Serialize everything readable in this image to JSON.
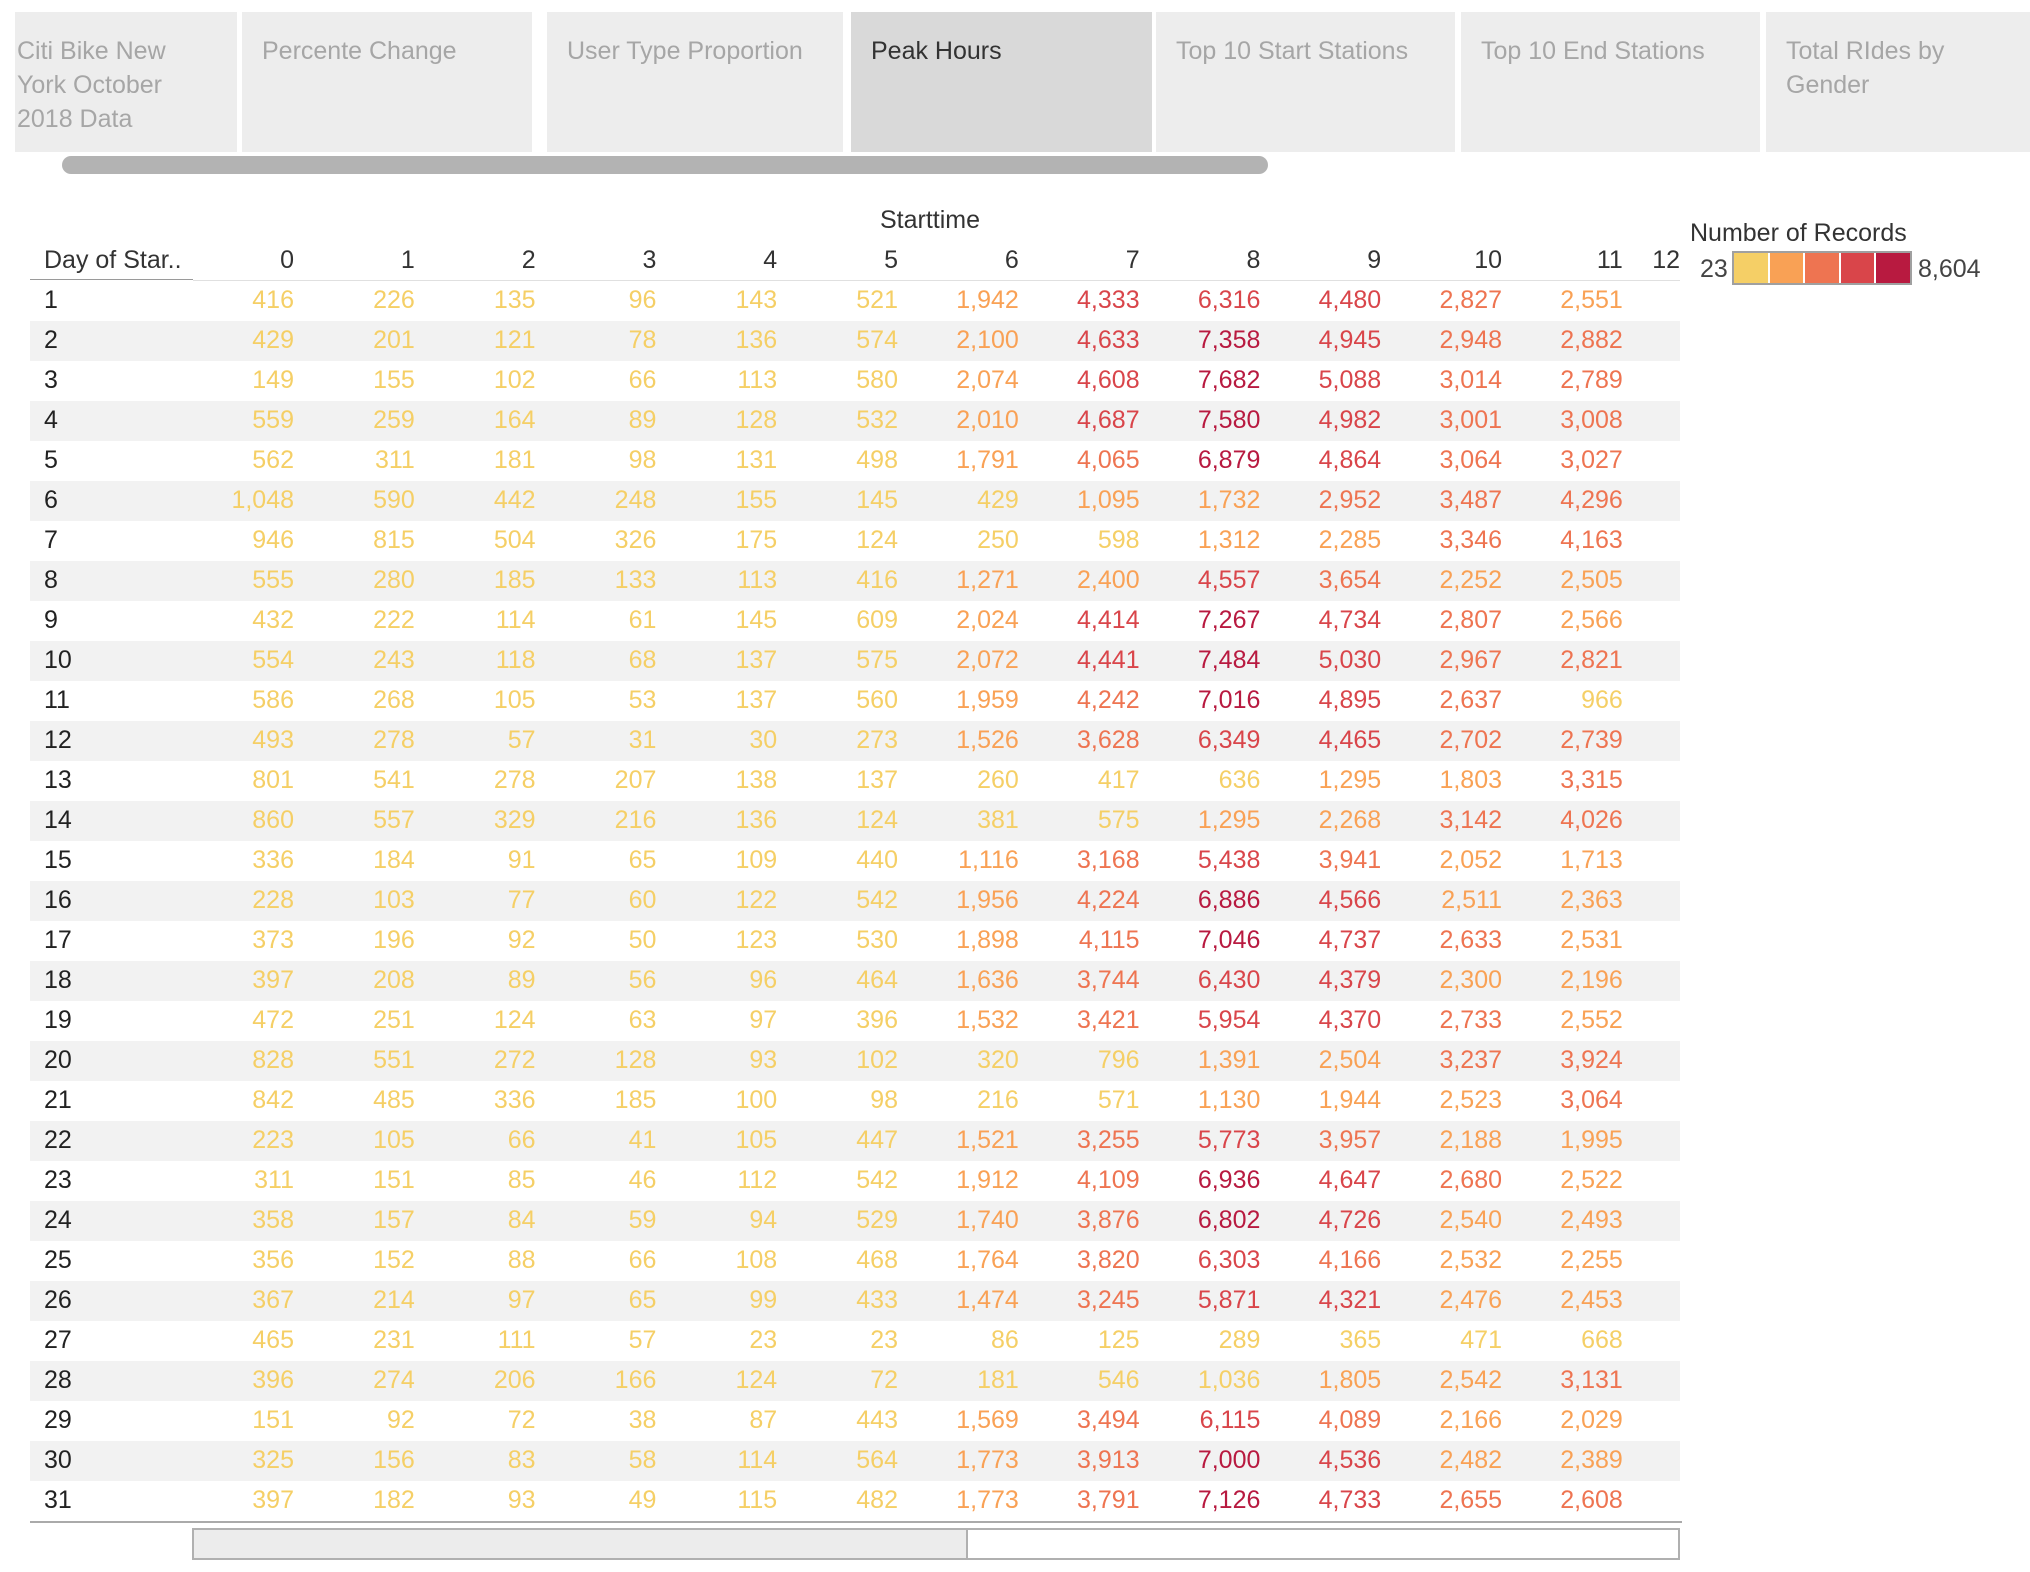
{
  "tabs": [
    {
      "label": "Citi Bike New York October 2018 Data",
      "active": false
    },
    {
      "label": "Percente Change",
      "active": false
    },
    {
      "label": "User Type Proportion",
      "active": false
    },
    {
      "label": "Peak Hours",
      "active": true
    },
    {
      "label": "Top 10 Start Stations",
      "active": false
    },
    {
      "label": "Top 10 End Stations",
      "active": false
    },
    {
      "label": "Total RIdes by Gender",
      "active": false
    }
  ],
  "table": {
    "column_title": "Starttime",
    "row_header": "Day of Star..",
    "columns": [
      "0",
      "1",
      "2",
      "3",
      "4",
      "5",
      "6",
      "7",
      "8",
      "9",
      "10",
      "11",
      "12"
    ],
    "rows": [
      {
        "day": "1",
        "values": [
          "416",
          "226",
          "135",
          "96",
          "143",
          "521",
          "1,942",
          "4,333",
          "6,316",
          "4,480",
          "2,827",
          "2,551"
        ]
      },
      {
        "day": "2",
        "values": [
          "429",
          "201",
          "121",
          "78",
          "136",
          "574",
          "2,100",
          "4,633",
          "7,358",
          "4,945",
          "2,948",
          "2,882"
        ]
      },
      {
        "day": "3",
        "values": [
          "149",
          "155",
          "102",
          "66",
          "113",
          "580",
          "2,074",
          "4,608",
          "7,682",
          "5,088",
          "3,014",
          "2,789"
        ]
      },
      {
        "day": "4",
        "values": [
          "559",
          "259",
          "164",
          "89",
          "128",
          "532",
          "2,010",
          "4,687",
          "7,580",
          "4,982",
          "3,001",
          "3,008"
        ]
      },
      {
        "day": "5",
        "values": [
          "562",
          "311",
          "181",
          "98",
          "131",
          "498",
          "1,791",
          "4,065",
          "6,879",
          "4,864",
          "3,064",
          "3,027"
        ]
      },
      {
        "day": "6",
        "values": [
          "1,048",
          "590",
          "442",
          "248",
          "155",
          "145",
          "429",
          "1,095",
          "1,732",
          "2,952",
          "3,487",
          "4,296"
        ]
      },
      {
        "day": "7",
        "values": [
          "946",
          "815",
          "504",
          "326",
          "175",
          "124",
          "250",
          "598",
          "1,312",
          "2,285",
          "3,346",
          "4,163"
        ]
      },
      {
        "day": "8",
        "values": [
          "555",
          "280",
          "185",
          "133",
          "113",
          "416",
          "1,271",
          "2,400",
          "4,557",
          "3,654",
          "2,252",
          "2,505"
        ]
      },
      {
        "day": "9",
        "values": [
          "432",
          "222",
          "114",
          "61",
          "145",
          "609",
          "2,024",
          "4,414",
          "7,267",
          "4,734",
          "2,807",
          "2,566"
        ]
      },
      {
        "day": "10",
        "values": [
          "554",
          "243",
          "118",
          "68",
          "137",
          "575",
          "2,072",
          "4,441",
          "7,484",
          "5,030",
          "2,967",
          "2,821"
        ]
      },
      {
        "day": "11",
        "values": [
          "586",
          "268",
          "105",
          "53",
          "137",
          "560",
          "1,959",
          "4,242",
          "7,016",
          "4,895",
          "2,637",
          "966"
        ]
      },
      {
        "day": "12",
        "values": [
          "493",
          "278",
          "57",
          "31",
          "30",
          "273",
          "1,526",
          "3,628",
          "6,349",
          "4,465",
          "2,702",
          "2,739"
        ]
      },
      {
        "day": "13",
        "values": [
          "801",
          "541",
          "278",
          "207",
          "138",
          "137",
          "260",
          "417",
          "636",
          "1,295",
          "1,803",
          "3,315"
        ]
      },
      {
        "day": "14",
        "values": [
          "860",
          "557",
          "329",
          "216",
          "136",
          "124",
          "381",
          "575",
          "1,295",
          "2,268",
          "3,142",
          "4,026"
        ]
      },
      {
        "day": "15",
        "values": [
          "336",
          "184",
          "91",
          "65",
          "109",
          "440",
          "1,116",
          "3,168",
          "5,438",
          "3,941",
          "2,052",
          "1,713"
        ]
      },
      {
        "day": "16",
        "values": [
          "228",
          "103",
          "77",
          "60",
          "122",
          "542",
          "1,956",
          "4,224",
          "6,886",
          "4,566",
          "2,511",
          "2,363"
        ]
      },
      {
        "day": "17",
        "values": [
          "373",
          "196",
          "92",
          "50",
          "123",
          "530",
          "1,898",
          "4,115",
          "7,046",
          "4,737",
          "2,633",
          "2,531"
        ]
      },
      {
        "day": "18",
        "values": [
          "397",
          "208",
          "89",
          "56",
          "96",
          "464",
          "1,636",
          "3,744",
          "6,430",
          "4,379",
          "2,300",
          "2,196"
        ]
      },
      {
        "day": "19",
        "values": [
          "472",
          "251",
          "124",
          "63",
          "97",
          "396",
          "1,532",
          "3,421",
          "5,954",
          "4,370",
          "2,733",
          "2,552"
        ]
      },
      {
        "day": "20",
        "values": [
          "828",
          "551",
          "272",
          "128",
          "93",
          "102",
          "320",
          "796",
          "1,391",
          "2,504",
          "3,237",
          "3,924"
        ]
      },
      {
        "day": "21",
        "values": [
          "842",
          "485",
          "336",
          "185",
          "100",
          "98",
          "216",
          "571",
          "1,130",
          "1,944",
          "2,523",
          "3,064"
        ]
      },
      {
        "day": "22",
        "values": [
          "223",
          "105",
          "66",
          "41",
          "105",
          "447",
          "1,521",
          "3,255",
          "5,773",
          "3,957",
          "2,188",
          "1,995"
        ]
      },
      {
        "day": "23",
        "values": [
          "311",
          "151",
          "85",
          "46",
          "112",
          "542",
          "1,912",
          "4,109",
          "6,936",
          "4,647",
          "2,680",
          "2,522"
        ]
      },
      {
        "day": "24",
        "values": [
          "358",
          "157",
          "84",
          "59",
          "94",
          "529",
          "1,740",
          "3,876",
          "6,802",
          "4,726",
          "2,540",
          "2,493"
        ]
      },
      {
        "day": "25",
        "values": [
          "356",
          "152",
          "88",
          "66",
          "108",
          "468",
          "1,764",
          "3,820",
          "6,303",
          "4,166",
          "2,532",
          "2,255"
        ]
      },
      {
        "day": "26",
        "values": [
          "367",
          "214",
          "97",
          "65",
          "99",
          "433",
          "1,474",
          "3,245",
          "5,871",
          "4,321",
          "2,476",
          "2,453"
        ]
      },
      {
        "day": "27",
        "values": [
          "465",
          "231",
          "111",
          "57",
          "23",
          "23",
          "86",
          "125",
          "289",
          "365",
          "471",
          "668"
        ]
      },
      {
        "day": "28",
        "values": [
          "396",
          "274",
          "206",
          "166",
          "124",
          "72",
          "181",
          "546",
          "1,036",
          "1,805",
          "2,542",
          "3,131"
        ]
      },
      {
        "day": "29",
        "values": [
          "151",
          "92",
          "72",
          "38",
          "87",
          "443",
          "1,569",
          "3,494",
          "6,115",
          "4,089",
          "2,166",
          "2,029"
        ]
      },
      {
        "day": "30",
        "values": [
          "325",
          "156",
          "83",
          "58",
          "114",
          "564",
          "1,773",
          "3,913",
          "7,000",
          "4,536",
          "2,482",
          "2,389"
        ]
      },
      {
        "day": "31",
        "values": [
          "397",
          "182",
          "93",
          "49",
          "115",
          "482",
          "1,773",
          "3,791",
          "7,126",
          "4,733",
          "2,655",
          "2,608"
        ]
      }
    ]
  },
  "legend": {
    "title": "Number of Records",
    "min": "23",
    "max": "8,604",
    "colors": [
      "#f5cf66",
      "#f9a155",
      "#ee7451",
      "#d9454a",
      "#b81a40"
    ]
  },
  "horizontal_scroll": {
    "visible_fraction": 0.52
  },
  "tab_scroll": {
    "visible_fraction": 0.62
  }
}
